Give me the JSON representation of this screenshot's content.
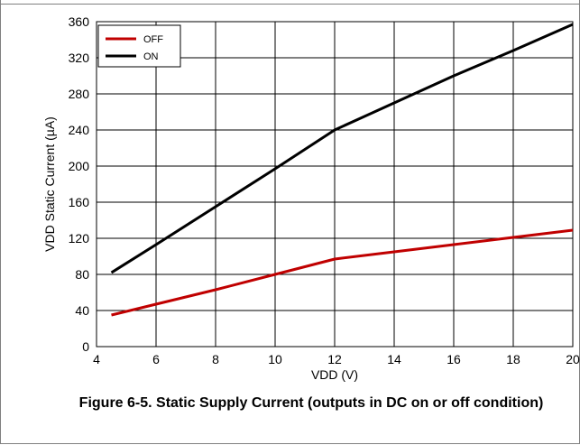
{
  "caption": "Figure 6-5. Static Supply Current (outputs in DC on or off condition)",
  "chart_data": {
    "type": "line",
    "title": "",
    "xlabel": "VDD (V)",
    "ylabel": "VDD Static Current (µA)",
    "xlim": [
      4,
      20
    ],
    "ylim": [
      0,
      360
    ],
    "x_ticks": [
      4,
      6,
      8,
      10,
      12,
      14,
      16,
      18,
      20
    ],
    "y_ticks": [
      0,
      40,
      80,
      120,
      160,
      200,
      240,
      280,
      320,
      360
    ],
    "grid": true,
    "legend_position": "top-left",
    "series": [
      {
        "name": "OFF",
        "color": "#c00000",
        "x": [
          4.5,
          6,
          8,
          10,
          12,
          14,
          16,
          18,
          20
        ],
        "y": [
          35,
          47,
          63,
          80,
          97,
          105,
          113,
          121,
          129
        ]
      },
      {
        "name": "ON",
        "color": "#000000",
        "x": [
          4.5,
          6,
          8,
          10,
          12,
          14,
          16,
          18,
          20
        ],
        "y": [
          82,
          113,
          155,
          197,
          240,
          270,
          300,
          328,
          357
        ]
      }
    ]
  }
}
